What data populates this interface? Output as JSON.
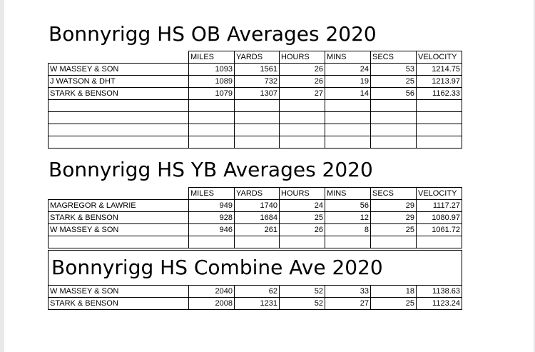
{
  "columns": [
    "MILES",
    "YARDS",
    "HOURS",
    "MINS",
    "SECS",
    "VELOCITY"
  ],
  "ob": {
    "title": "Bonnyrigg HS OB Averages 2020",
    "rows": [
      [
        "W MASSEY & SON",
        "1093",
        "1561",
        "26",
        "24",
        "53",
        "1214.75"
      ],
      [
        "J WATSON & DHT",
        "1089",
        "732",
        "26",
        "19",
        "25",
        "1213.97"
      ],
      [
        "STARK & BENSON",
        "1079",
        "1307",
        "27",
        "14",
        "56",
        "1162.33"
      ]
    ],
    "empty_rows": 4
  },
  "yb": {
    "title": "Bonnyrigg HS YB Averages 2020",
    "rows": [
      [
        "MAGREGOR & LAWRIE",
        "949",
        "1740",
        "24",
        "56",
        "29",
        "1117.27"
      ],
      [
        "STARK & BENSON",
        "928",
        "1684",
        "25",
        "12",
        "29",
        "1080.97"
      ],
      [
        "W MASSEY & SON",
        "946",
        "261",
        "26",
        "8",
        "25",
        "1061.72"
      ]
    ],
    "empty_rows": 1
  },
  "combine": {
    "title": "Bonnyrigg HS Combine Ave 2020",
    "rows": [
      [
        "W MASSEY & SON",
        "2040",
        "62",
        "52",
        "33",
        "18",
        "1138.63"
      ],
      [
        "STARK & BENSON",
        "2008",
        "1231",
        "52",
        "27",
        "25",
        "1123.24"
      ]
    ]
  }
}
